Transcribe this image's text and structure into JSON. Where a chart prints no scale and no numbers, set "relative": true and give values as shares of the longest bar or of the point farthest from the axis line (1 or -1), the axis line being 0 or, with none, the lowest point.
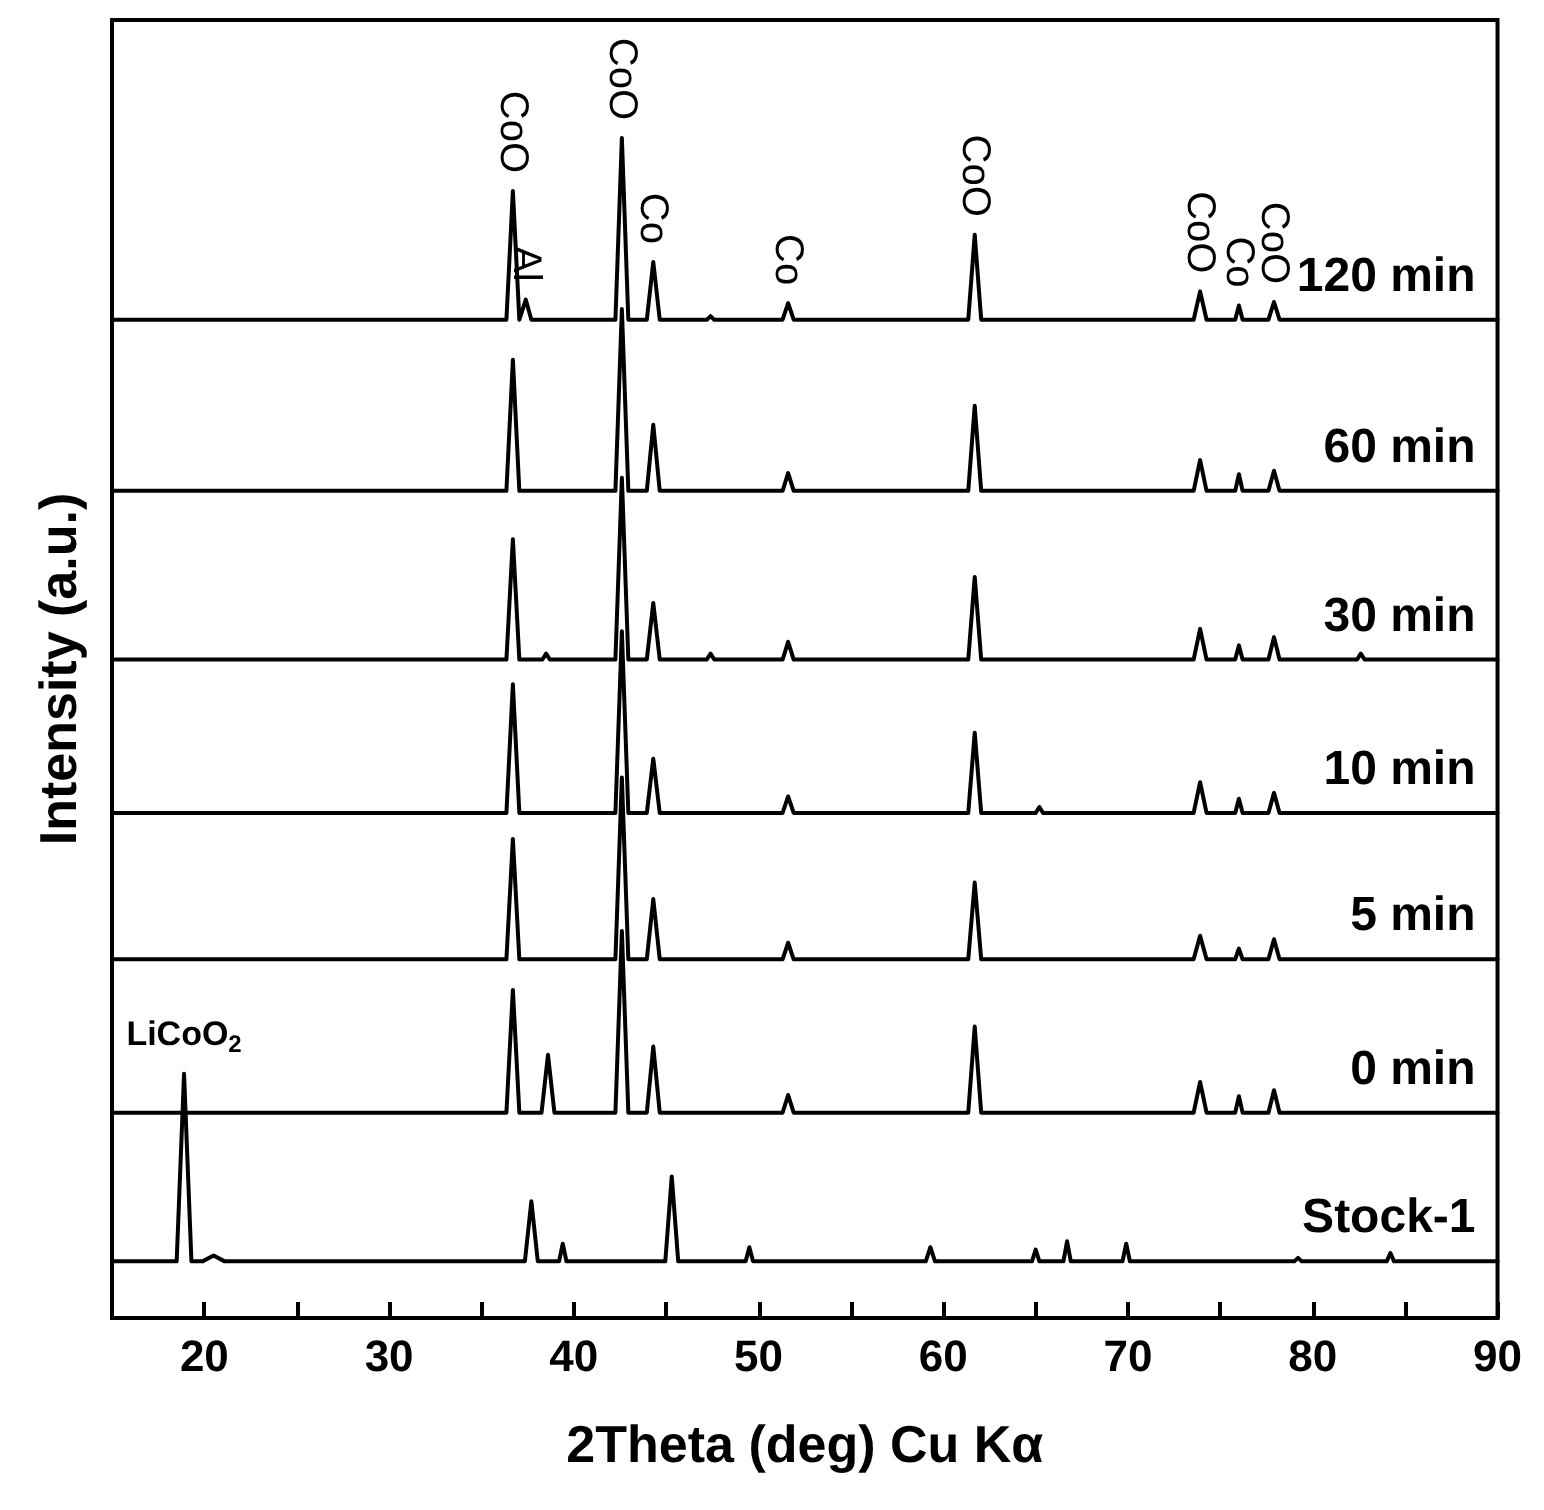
{
  "chart_data": {
    "type": "line",
    "relative": true,
    "xlabel": "2Theta (deg) Cu Kα",
    "ylabel": "Intensity (a.u.)",
    "xlim": [
      15,
      90
    ],
    "xticks": [
      20,
      {
        "value": 25,
        "label": null
      },
      30,
      {
        "value": 35,
        "label": null
      },
      40,
      {
        "value": 45,
        "label": null
      },
      50,
      {
        "value": 55,
        "label": null
      },
      60,
      {
        "value": 65,
        "label": null
      },
      70,
      {
        "value": 75,
        "label": null
      },
      80,
      {
        "value": 85,
        "label": null
      },
      90
    ],
    "legend": false,
    "grid": false,
    "marker": "none",
    "line_style": "solid",
    "series": [
      {
        "name": "120 min",
        "color": "#000000",
        "x": [
          15,
          36.35,
          36.7,
          37.05,
          37.4,
          37.7,
          42.25,
          42.6,
          42.95,
          43.95,
          44.3,
          44.65,
          47.2,
          47.4,
          47.6,
          51.3,
          51.6,
          51.9,
          61.35,
          61.7,
          62.05,
          73.55,
          73.9,
          74.25,
          75.8,
          76.0,
          76.2,
          77.6,
          77.9,
          78.2,
          90
        ],
        "values": [
          0.846,
          0.846,
          0.955,
          0.846,
          0.863,
          0.846,
          0.846,
          1.0,
          0.846,
          0.846,
          0.895,
          0.846,
          0.846,
          0.849,
          0.846,
          0.846,
          0.86,
          0.846,
          0.846,
          0.918,
          0.846,
          0.846,
          0.87,
          0.846,
          0.846,
          0.858,
          0.846,
          0.846,
          0.861,
          0.846,
          0.846
        ]
      },
      {
        "name": "60 min",
        "color": "#000000",
        "x": [
          15,
          36.35,
          36.7,
          37.05,
          42.25,
          42.6,
          42.95,
          43.95,
          44.3,
          44.65,
          51.3,
          51.6,
          51.9,
          61.35,
          61.7,
          62.05,
          73.55,
          73.9,
          74.25,
          75.8,
          76.0,
          76.2,
          77.6,
          77.9,
          78.2,
          90
        ],
        "values": [
          0.701,
          0.701,
          0.812,
          0.701,
          0.701,
          0.855,
          0.701,
          0.701,
          0.757,
          0.701,
          0.701,
          0.716,
          0.701,
          0.701,
          0.773,
          0.701,
          0.701,
          0.727,
          0.701,
          0.701,
          0.715,
          0.701,
          0.701,
          0.718,
          0.701,
          0.701
        ]
      },
      {
        "name": "30 min",
        "color": "#000000",
        "x": [
          15,
          36.35,
          36.7,
          37.05,
          38.3,
          38.5,
          38.7,
          42.25,
          42.6,
          42.95,
          43.95,
          44.3,
          44.65,
          47.2,
          47.4,
          47.6,
          51.3,
          51.6,
          51.9,
          61.35,
          61.7,
          62.05,
          73.55,
          73.9,
          74.25,
          75.8,
          76.0,
          76.2,
          77.6,
          77.9,
          78.2,
          82.4,
          82.6,
          82.8,
          90
        ],
        "values": [
          0.558,
          0.558,
          0.66,
          0.558,
          0.558,
          0.563,
          0.558,
          0.558,
          0.712,
          0.558,
          0.558,
          0.606,
          0.558,
          0.558,
          0.563,
          0.558,
          0.558,
          0.573,
          0.558,
          0.558,
          0.628,
          0.558,
          0.558,
          0.584,
          0.558,
          0.558,
          0.57,
          0.558,
          0.558,
          0.577,
          0.558,
          0.558,
          0.563,
          0.558,
          0.558
        ]
      },
      {
        "name": "10 min",
        "color": "#000000",
        "x": [
          15,
          36.35,
          36.7,
          37.05,
          42.25,
          42.6,
          42.95,
          43.95,
          44.3,
          44.65,
          51.3,
          51.6,
          51.9,
          61.35,
          61.7,
          62.05,
          65.0,
          65.2,
          65.4,
          73.55,
          73.9,
          74.25,
          75.8,
          76.0,
          76.2,
          77.6,
          77.9,
          78.2,
          90
        ],
        "values": [
          0.428,
          0.428,
          0.537,
          0.428,
          0.428,
          0.582,
          0.428,
          0.428,
          0.474,
          0.428,
          0.428,
          0.442,
          0.428,
          0.428,
          0.496,
          0.428,
          0.428,
          0.433,
          0.428,
          0.428,
          0.454,
          0.428,
          0.428,
          0.44,
          0.428,
          0.428,
          0.445,
          0.428,
          0.428
        ]
      },
      {
        "name": "5 min",
        "color": "#000000",
        "x": [
          15,
          36.35,
          36.7,
          37.05,
          42.25,
          42.6,
          42.95,
          43.95,
          44.3,
          44.65,
          51.3,
          51.6,
          51.9,
          61.35,
          61.7,
          62.05,
          73.55,
          73.9,
          74.25,
          75.8,
          76.0,
          76.2,
          77.6,
          77.9,
          78.2,
          90
        ],
        "values": [
          0.304,
          0.304,
          0.406,
          0.304,
          0.304,
          0.458,
          0.304,
          0.304,
          0.355,
          0.304,
          0.304,
          0.318,
          0.304,
          0.304,
          0.369,
          0.304,
          0.304,
          0.324,
          0.304,
          0.304,
          0.313,
          0.304,
          0.304,
          0.321,
          0.304,
          0.304
        ]
      },
      {
        "name": "0 min",
        "color": "#000000",
        "x": [
          15,
          36.35,
          36.7,
          37.05,
          38.25,
          38.6,
          38.95,
          42.25,
          42.6,
          42.95,
          43.95,
          44.3,
          44.65,
          51.3,
          51.6,
          51.9,
          61.35,
          61.7,
          62.05,
          73.55,
          73.9,
          74.25,
          75.8,
          76.0,
          76.2,
          77.6,
          77.9,
          78.2,
          90
        ],
        "values": [
          0.174,
          0.174,
          0.278,
          0.174,
          0.174,
          0.223,
          0.174,
          0.174,
          0.328,
          0.174,
          0.174,
          0.23,
          0.174,
          0.174,
          0.189,
          0.174,
          0.174,
          0.247,
          0.174,
          0.174,
          0.2,
          0.174,
          0.174,
          0.188,
          0.174,
          0.174,
          0.193,
          0.174,
          0.174
        ]
      },
      {
        "name": "Stock-1",
        "color": "#000000",
        "x": [
          15,
          18.5,
          18.9,
          19.3,
          19.9,
          20.5,
          21.1,
          37.35,
          37.7,
          38.05,
          39.2,
          39.4,
          39.6,
          44.95,
          45.3,
          45.65,
          49.3,
          49.5,
          49.7,
          59.05,
          59.3,
          59.55,
          64.8,
          65.0,
          65.2,
          66.5,
          66.7,
          66.9,
          69.7,
          69.9,
          70.1,
          79.0,
          79.2,
          79.4,
          84.0,
          84.2,
          84.4,
          90
        ],
        "values": [
          0.048,
          0.048,
          0.207,
          0.048,
          0.048,
          0.053,
          0.048,
          0.048,
          0.099,
          0.048,
          0.048,
          0.063,
          0.048,
          0.048,
          0.12,
          0.048,
          0.048,
          0.06,
          0.048,
          0.048,
          0.06,
          0.048,
          0.048,
          0.058,
          0.048,
          0.048,
          0.065,
          0.048,
          0.048,
          0.063,
          0.048,
          0.048,
          0.051,
          0.048,
          0.048,
          0.055,
          0.048,
          0.048
        ]
      }
    ],
    "annotations": [
      {
        "text": "CoO",
        "x": 36.7,
        "y": 0.955
      },
      {
        "text": "Al",
        "x": 37.4,
        "y": 0.863
      },
      {
        "text": "CoO",
        "x": 42.6,
        "y": 1.0
      },
      {
        "text": "Co",
        "x": 44.3,
        "y": 0.895
      },
      {
        "text": "Co",
        "x": 51.6,
        "y": 0.86
      },
      {
        "text": "CoO",
        "x": 61.7,
        "y": 0.918
      },
      {
        "text": "CoO",
        "x": 73.9,
        "y": 0.87
      },
      {
        "text": "Co",
        "x": 76.0,
        "y": 0.858
      },
      {
        "text": "CoO",
        "x": 77.9,
        "y": 0.861
      },
      {
        "text": "LiCoO$_{2}$",
        "x": 18.9,
        "y": 0.207
      }
    ]
  }
}
